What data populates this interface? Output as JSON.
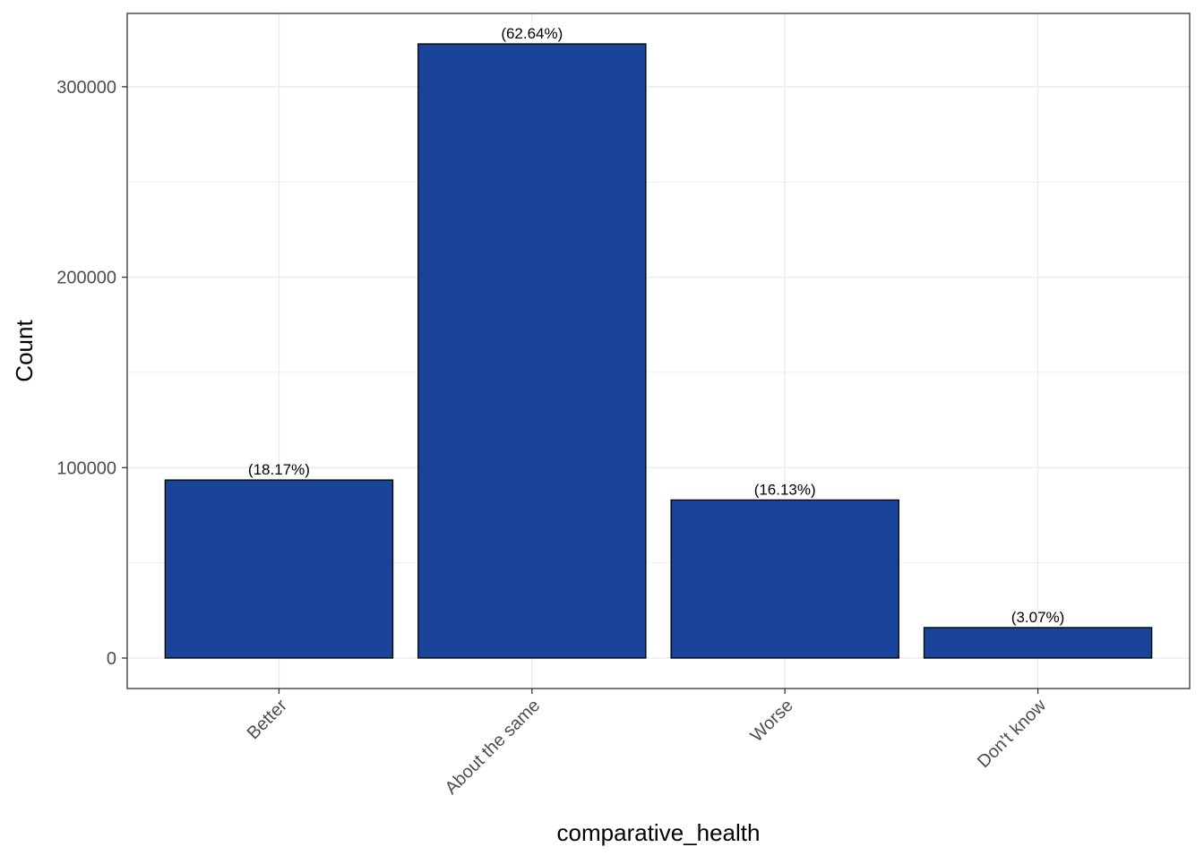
{
  "chart_data": {
    "type": "bar",
    "categories": [
      "Better",
      "About the same",
      "Worse",
      "Don't know"
    ],
    "values": [
      93500,
      322500,
      83000,
      16000
    ],
    "data_labels": [
      "(18.17%)",
      "(62.64%)",
      "(16.13%)",
      "(3.07%)"
    ],
    "xlabel": "comparative_health",
    "ylabel": "Count",
    "ylim": [
      -16000,
      338500
    ],
    "y_ticks": [
      0,
      100000,
      200000,
      300000
    ],
    "y_tick_labels": [
      "0",
      "100000",
      "200000",
      "300000"
    ],
    "y_minor_ticks": [
      50000,
      150000,
      250000
    ],
    "grid": true,
    "bar_color": "#1a4499",
    "bar_border_color": "#000000",
    "grid_color": "#ebebeb"
  }
}
